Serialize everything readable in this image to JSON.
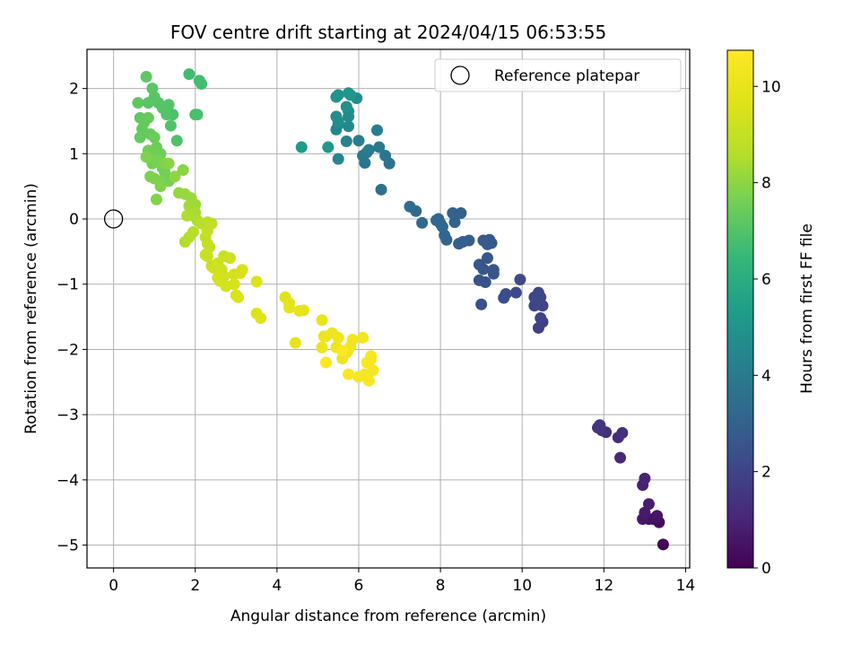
{
  "chart_data": {
    "type": "scatter",
    "title": "FOV centre drift starting at 2024/04/15 06:53:55",
    "xlabel": "Angular distance from reference (arcmin)",
    "ylabel": "Rotation from reference (arcmin)",
    "xlim": [
      -0.65,
      14.1
    ],
    "ylim": [
      -5.35,
      2.6
    ],
    "xticks": [
      0,
      2,
      4,
      6,
      8,
      10,
      12,
      14
    ],
    "yticks": [
      2,
      1,
      0,
      -1,
      -2,
      -3,
      -4,
      -5
    ],
    "grid": true,
    "legend": {
      "placement": "top-right",
      "entries": [
        "Reference platepar"
      ]
    },
    "reference_point": {
      "x": 0,
      "y": 0
    },
    "colorbar": {
      "label": "Hours from first FF file",
      "range": [
        0,
        10.75
      ],
      "ticks": [
        0,
        2,
        4,
        6,
        8,
        10
      ],
      "colormap": "viridis"
    },
    "series": [
      {
        "x": [
          13.45,
          13.35,
          13.2,
          13.1,
          13.3,
          12.95,
          13.0,
          13.1,
          12.95,
          13.0,
          12.4,
          12.35,
          12.45,
          12.05,
          11.95,
          11.85,
          11.9
        ],
        "y": [
          -4.99,
          -4.65,
          -4.6,
          -4.6,
          -4.55,
          -4.6,
          -4.5,
          -4.37,
          -4.08,
          -3.98,
          -3.66,
          -3.35,
          -3.28,
          -3.27,
          -3.24,
          -3.2,
          -3.16
        ],
        "hours": [
          0.1,
          0.3,
          0.4,
          0.5,
          0.55,
          0.6,
          0.7,
          0.8,
          0.9,
          1.0,
          1.15,
          1.25,
          1.3,
          1.35,
          1.4,
          1.45,
          1.5
        ]
      },
      {
        "x": [
          10.4,
          10.5,
          10.45,
          10.3,
          10.5,
          10.35,
          10.45,
          10.3,
          10.4,
          9.85,
          9.95,
          9.6,
          9.55,
          9.0,
          9.1,
          8.95,
          9.3,
          9.3,
          9.05,
          8.95,
          9.15,
          9.25,
          9.2,
          9.15,
          9.05,
          8.7,
          8.55,
          8.45,
          8.3,
          8.5,
          8.35,
          8.15,
          8.1,
          8.05,
          8.0,
          7.95,
          7.9,
          7.55,
          7.4,
          7.25
        ],
        "y": [
          -1.67,
          -1.58,
          -1.52,
          -1.33,
          -1.33,
          -1.25,
          -1.2,
          -1.2,
          -1.13,
          -1.13,
          -0.93,
          -1.15,
          -1.21,
          -1.31,
          -0.97,
          -0.94,
          -0.84,
          -0.78,
          -0.77,
          -0.7,
          -0.6,
          -0.37,
          -0.32,
          -0.39,
          -0.33,
          -0.33,
          -0.35,
          -0.38,
          0.09,
          0.09,
          -0.05,
          -0.32,
          -0.25,
          -0.12,
          -0.07,
          0.0,
          -0.02,
          -0.06,
          0.12,
          0.19
        ],
        "hours": [
          1.85,
          1.9,
          1.95,
          2.0,
          2.02,
          2.05,
          2.08,
          2.1,
          2.12,
          2.2,
          2.25,
          2.3,
          2.32,
          2.4,
          2.45,
          2.48,
          2.52,
          2.56,
          2.6,
          2.62,
          2.65,
          2.7,
          2.72,
          2.74,
          2.76,
          2.85,
          2.9,
          2.95,
          3.0,
          3.02,
          3.05,
          3.1,
          3.12,
          3.15,
          3.18,
          3.2,
          3.22,
          3.3,
          3.35,
          3.4
        ]
      },
      {
        "x": [
          6.55,
          6.75,
          6.65,
          6.15,
          6.1,
          6.2,
          6.5,
          6.25,
          6.0,
          6.45,
          5.7,
          5.5,
          5.45,
          5.5,
          5.75,
          5.75,
          5.75,
          5.95,
          5.5,
          5.45,
          5.7,
          5.45,
          5.5,
          5.8,
          5.75,
          5.25,
          4.6
        ],
        "y": [
          0.45,
          0.85,
          0.97,
          0.86,
          0.97,
          1.02,
          1.1,
          1.06,
          1.2,
          1.36,
          1.19,
          0.92,
          1.37,
          1.45,
          1.42,
          1.57,
          1.65,
          1.85,
          1.5,
          1.57,
          1.72,
          1.87,
          1.9,
          1.9,
          1.93,
          1.1,
          1.1
        ],
        "hours": [
          3.6,
          3.7,
          3.75,
          3.8,
          3.85,
          3.9,
          3.95,
          4.0,
          4.1,
          4.15,
          4.3,
          4.4,
          4.45,
          4.5,
          4.55,
          4.6,
          4.65,
          4.7,
          4.75,
          4.8,
          4.85,
          4.9,
          4.95,
          5.0,
          5.05,
          5.2,
          5.3
        ]
      },
      {
        "x": [
          1.85,
          2.1,
          2.15,
          2.0,
          2.05,
          1.45,
          1.55,
          1.4,
          1.3,
          1.35,
          1.2,
          1.1,
          1.0,
          0.85,
          0.95,
          0.8,
          0.6,
          0.65,
          0.7,
          0.65,
          0.75,
          0.85,
          0.9,
          1.0,
          1.05,
          0.95,
          1.15,
          1.2,
          1.25,
          1.35,
          0.85,
          0.95,
          1.05,
          1.15,
          0.9,
          1.0,
          0.8,
          1.15,
          1.25,
          1.05
        ],
        "y": [
          2.22,
          2.12,
          2.07,
          1.6,
          1.6,
          1.6,
          1.2,
          1.43,
          1.6,
          1.75,
          1.7,
          1.78,
          1.87,
          1.78,
          2.0,
          2.18,
          1.78,
          1.55,
          1.38,
          1.25,
          1.48,
          1.55,
          1.3,
          1.25,
          1.1,
          1.02,
          1.0,
          0.78,
          0.72,
          0.58,
          1.05,
          0.85,
          0.9,
          0.58,
          0.65,
          0.62,
          0.95,
          0.5,
          0.85,
          0.3
        ],
        "hours": [
          6.7,
          6.72,
          6.74,
          6.8,
          6.82,
          6.88,
          6.92,
          6.95,
          7.0,
          7.02,
          7.05,
          7.08,
          7.1,
          7.12,
          7.15,
          7.18,
          7.2,
          7.25,
          7.3,
          7.32,
          7.35,
          7.38,
          7.4,
          7.45,
          7.48,
          7.5,
          7.55,
          7.58,
          7.6,
          7.62,
          7.55,
          7.6,
          7.65,
          7.7,
          7.72,
          7.75,
          7.78,
          7.8,
          7.82,
          7.85
        ]
      },
      {
        "x": [
          1.35,
          1.7,
          1.5,
          1.6,
          1.75,
          1.9,
          2.0,
          1.85,
          1.95,
          2.0,
          2.05,
          1.8,
          1.75,
          1.85,
          1.95,
          2.15,
          2.3,
          2.4,
          2.3,
          2.25,
          2.3,
          2.35,
          2.25,
          2.4,
          2.3,
          2.7,
          2.85,
          2.6,
          2.55,
          2.45,
          2.65,
          2.95,
          2.7,
          2.6,
          2.55,
          2.75,
          2.95,
          3.15,
          3.1,
          3.0,
          3.05
        ],
        "y": [
          0.85,
          0.75,
          0.65,
          0.4,
          0.38,
          0.32,
          0.22,
          0.2,
          0.05,
          0.1,
          -0.02,
          0.05,
          -0.35,
          -0.28,
          -0.2,
          -0.07,
          -0.05,
          -0.07,
          -0.18,
          -0.28,
          -0.38,
          -0.43,
          -0.55,
          -0.72,
          -0.57,
          -0.57,
          -0.6,
          -0.75,
          -0.68,
          -0.75,
          -0.78,
          -0.85,
          -0.88,
          -0.95,
          -0.9,
          -1.03,
          -1.0,
          -0.78,
          -0.83,
          -1.17,
          -1.2
        ],
        "hours": [
          7.9,
          7.95,
          8.0,
          8.1,
          8.15,
          8.2,
          8.25,
          8.3,
          8.35,
          8.4,
          8.45,
          8.5,
          8.55,
          8.6,
          8.65,
          8.7,
          8.75,
          8.8,
          8.85,
          8.9,
          8.95,
          9.0,
          9.05,
          9.1,
          9.12,
          9.15,
          9.18,
          9.2,
          9.22,
          9.25,
          9.28,
          9.3,
          9.32,
          9.35,
          9.38,
          9.4,
          9.42,
          9.45,
          9.48,
          9.5,
          9.52
        ]
      },
      {
        "x": [
          3.5,
          3.5,
          3.6,
          4.2,
          4.3,
          4.3,
          4.55,
          4.65,
          4.45,
          5.1,
          5.15,
          5.1,
          5.35,
          5.2,
          5.5,
          5.6,
          5.45,
          5.7,
          5.75,
          5.85,
          5.8,
          6.1,
          6.15,
          6.0,
          6.25,
          6.2,
          6.35,
          6.3,
          6.3,
          5.75,
          5.6,
          5.2
        ],
        "y": [
          -0.96,
          -1.45,
          -1.52,
          -1.2,
          -1.36,
          -1.29,
          -1.41,
          -1.4,
          -1.9,
          -1.55,
          -1.8,
          -1.97,
          -1.75,
          -1.8,
          -1.82,
          -2.14,
          -1.97,
          -2.05,
          -2.0,
          -1.85,
          -1.95,
          -1.82,
          -2.38,
          -2.42,
          -2.48,
          -2.2,
          -2.32,
          -2.15,
          -2.1,
          -2.38,
          -2.02,
          -2.2
        ],
        "hours": [
          9.6,
          9.65,
          9.7,
          9.8,
          9.85,
          9.88,
          9.92,
          9.95,
          9.98,
          10.05,
          10.08,
          10.1,
          10.12,
          10.15,
          10.2,
          10.22,
          10.25,
          10.3,
          10.32,
          10.35,
          10.38,
          10.4,
          10.45,
          10.48,
          10.5,
          10.52,
          10.55,
          10.58,
          10.6,
          10.65,
          10.68,
          10.7
        ]
      }
    ]
  }
}
